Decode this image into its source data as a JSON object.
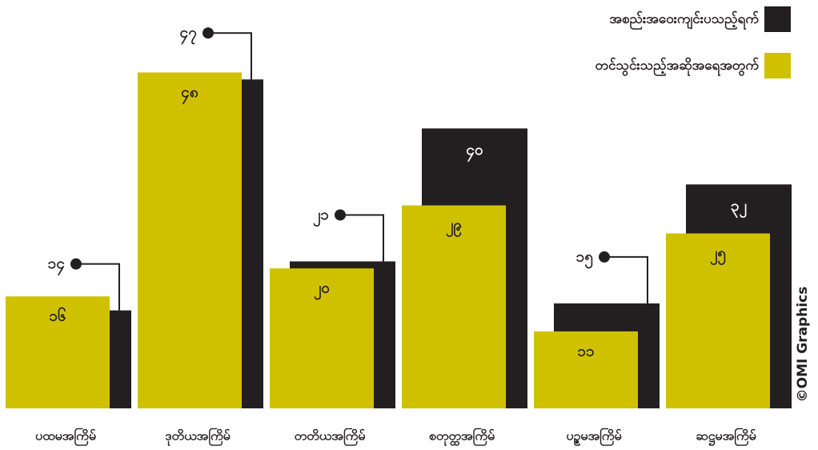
{
  "chart_data": {
    "type": "bar",
    "categories": [
      "ပထမအကြိမ်",
      "ဒုတိယအကြိမ်",
      "တတိယအကြိမ်",
      "စတုတ္ထအကြိမ်",
      "ပဉ္စမအကြိမ်",
      "ဆဋ္ဌမအကြိမ်"
    ],
    "series": [
      {
        "name": "အစည်းအဝေးကျင်းပသည့်ရက်",
        "color": "#231f20",
        "values": [
          14,
          47,
          21,
          40,
          15,
          32
        ],
        "value_labels": [
          "၁၄",
          "၄၇",
          "၂၁",
          "၄၀",
          "၁၅",
          "၃၂"
        ]
      },
      {
        "name": "တင်သွင်းသည့်အဆိုအရေအတွက်",
        "color": "#d0c100",
        "values": [
          16,
          48,
          20,
          29,
          11,
          25
        ],
        "value_labels": [
          "၁၆",
          "၄၈",
          "၂၀",
          "၂၉",
          "၁၁",
          "၂၅"
        ]
      }
    ],
    "ylim": [
      0,
      50
    ],
    "legend": "top-right",
    "credit": "©OMI Graphics"
  }
}
